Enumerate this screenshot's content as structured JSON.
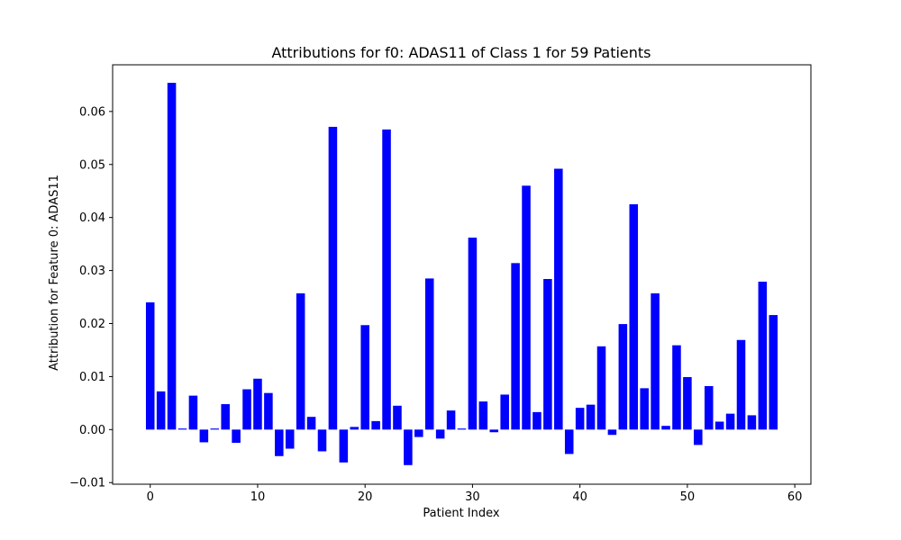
{
  "chart_data": {
    "type": "bar",
    "title": "Attributions for f0: ADAS11 of Class 1 for 59 Patients",
    "xlabel": "Patient Index",
    "ylabel": "Attribution for Feature 0: ADAS11",
    "bar_color": "#0000ff",
    "xlim": [
      -3.5,
      61.5
    ],
    "ylim": [
      -0.0103,
      0.0688
    ],
    "xticks": [
      0,
      10,
      20,
      30,
      40,
      50,
      60
    ],
    "xtick_labels": [
      "0",
      "10",
      "20",
      "30",
      "40",
      "50",
      "60"
    ],
    "yticks": [
      -0.01,
      0.0,
      0.01,
      0.02,
      0.03,
      0.04,
      0.05,
      0.06
    ],
    "ytick_labels": [
      "−0.01",
      "0.00",
      "0.01",
      "0.02",
      "0.03",
      "0.04",
      "0.05",
      "0.06"
    ],
    "grid": false,
    "x": [
      0,
      1,
      2,
      3,
      4,
      5,
      6,
      7,
      8,
      9,
      10,
      11,
      12,
      13,
      14,
      15,
      16,
      17,
      18,
      19,
      20,
      21,
      22,
      23,
      24,
      25,
      26,
      27,
      28,
      29,
      30,
      31,
      32,
      33,
      34,
      35,
      36,
      37,
      38,
      39,
      40,
      41,
      42,
      43,
      44,
      45,
      46,
      47,
      48,
      49,
      50,
      51,
      52,
      53,
      54,
      55,
      56,
      57,
      58
    ],
    "values": [
      0.024,
      0.0072,
      0.0654,
      0.0002,
      0.0064,
      -0.0024,
      0.0002,
      0.0048,
      -0.0025,
      0.0076,
      0.0096,
      0.0069,
      -0.005,
      -0.0036,
      0.0257,
      0.0024,
      -0.0041,
      0.0571,
      -0.0062,
      0.0005,
      0.0197,
      0.0016,
      0.0566,
      0.0045,
      -0.0067,
      -0.0014,
      0.0285,
      -0.0017,
      0.0036,
      0.0002,
      0.0362,
      0.0053,
      -0.0005,
      0.0066,
      0.0314,
      0.046,
      0.0033,
      0.0284,
      0.0492,
      -0.0046,
      0.0041,
      0.0047,
      0.0157,
      -0.001,
      0.0199,
      0.0425,
      0.0078,
      0.0257,
      0.0007,
      0.0159,
      0.0099,
      -0.0029,
      0.0082,
      0.0015,
      0.003,
      0.0169,
      0.0027,
      0.0279,
      0.0216
    ]
  }
}
